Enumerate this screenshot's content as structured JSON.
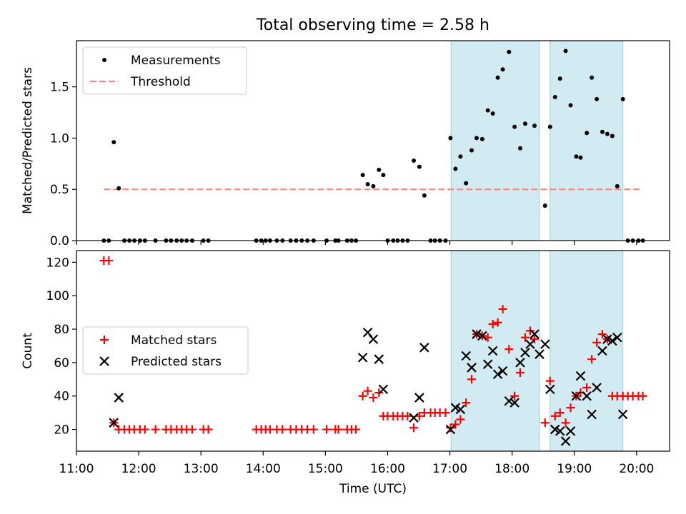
{
  "figure": {
    "title": "Total observing time = 2.58 h"
  },
  "chart_data": [
    {
      "type": "scatter",
      "ylabel": "Matched/Predicted stars",
      "xlim": [
        11.0,
        20.53
      ],
      "ylim": [
        0,
        1.95
      ],
      "yticks": [
        0.0,
        0.5,
        1.0,
        1.5
      ],
      "ytick_labels": [
        "0.0",
        "0.5",
        "1.0",
        "1.5"
      ],
      "grid": false,
      "legend": {
        "position": "upper-left",
        "entries": [
          "Measurements",
          "Threshold"
        ]
      },
      "shaded_intervals": [
        [
          17.02,
          18.44
        ],
        [
          18.61,
          19.78
        ]
      ],
      "threshold": {
        "name": "Threshold",
        "y": 0.5,
        "x_start": 11.44,
        "x_end": 20.1,
        "color": "#ff8080"
      },
      "series": [
        {
          "name": "Measurements",
          "color": "#000000",
          "x": [
            11.44,
            11.52,
            11.6,
            11.68,
            11.77,
            11.85,
            11.93,
            12.02,
            12.1,
            12.27,
            12.44,
            12.52,
            12.61,
            12.69,
            12.77,
            12.86,
            13.04,
            13.12,
            13.89,
            13.97,
            14.04,
            14.11,
            14.22,
            14.31,
            14.44,
            14.53,
            14.62,
            14.71,
            14.81,
            15.02,
            15.16,
            15.21,
            15.35,
            15.42,
            15.49,
            15.6,
            15.68,
            15.77,
            15.86,
            15.93,
            16.0,
            16.09,
            16.16,
            16.24,
            16.32,
            16.42,
            16.51,
            16.59,
            16.69,
            16.76,
            16.84,
            16.93,
            17.01,
            17.09,
            17.17,
            17.26,
            17.35,
            17.43,
            17.52,
            17.61,
            17.69,
            17.77,
            17.85,
            17.95,
            18.04,
            18.13,
            18.21,
            18.36,
            18.53,
            18.61,
            18.69,
            18.77,
            18.86,
            18.94,
            19.03,
            19.1,
            19.2,
            19.28,
            19.36,
            19.45,
            19.53,
            19.61,
            19.69,
            19.78,
            19.86,
            19.94,
            20.03,
            20.1
          ],
          "y": [
            0,
            0,
            0.96,
            0.51,
            0,
            0,
            0,
            0,
            0,
            0,
            0,
            0,
            0,
            0,
            0,
            0,
            0,
            0,
            0,
            0,
            0,
            0,
            0,
            0,
            0,
            0,
            0,
            0,
            0,
            0,
            0,
            0,
            0,
            0,
            0,
            0.64,
            0.55,
            0.53,
            0.69,
            0.64,
            0,
            0,
            0,
            0,
            0,
            0.78,
            0.72,
            0.44,
            0,
            0,
            0,
            0,
            1.0,
            0.7,
            0.82,
            0.56,
            0.88,
            1.0,
            0.99,
            1.27,
            1.24,
            1.59,
            1.67,
            1.84,
            1.11,
            0.9,
            1.14,
            1.12,
            0.34,
            1.11,
            1.4,
            1.58,
            1.85,
            1.32,
            0.82,
            0.81,
            1.05,
            1.59,
            1.38,
            1.06,
            1.04,
            1.02,
            0.53,
            1.38,
            0,
            0,
            0,
            0
          ]
        }
      ]
    },
    {
      "type": "scatter",
      "xlabel": "Time (UTC)",
      "ylabel": "Count",
      "xlim": [
        11.0,
        20.53
      ],
      "ylim": [
        7,
        127
      ],
      "xticks": [
        11,
        12,
        13,
        14,
        15,
        16,
        17,
        18,
        19,
        20
      ],
      "xtick_labels": [
        "11:00",
        "12:00",
        "13:00",
        "14:00",
        "15:00",
        "16:00",
        "17:00",
        "18:00",
        "19:00",
        "20:00"
      ],
      "yticks": [
        20,
        40,
        60,
        80,
        100,
        120
      ],
      "ytick_labels": [
        "20",
        "40",
        "60",
        "80",
        "100",
        "120"
      ],
      "grid": false,
      "legend": {
        "position": "center-left",
        "entries": [
          "Matched stars",
          "Predicted stars"
        ]
      },
      "shaded_intervals": [
        [
          17.02,
          18.44
        ],
        [
          18.61,
          19.78
        ]
      ],
      "series": [
        {
          "name": "Matched stars",
          "marker": "plus",
          "color": "#ff0000",
          "x": [
            11.44,
            11.52,
            11.6,
            11.68,
            11.77,
            11.85,
            11.93,
            12.02,
            12.1,
            12.27,
            12.44,
            12.52,
            12.61,
            12.69,
            12.77,
            12.86,
            13.04,
            13.12,
            13.89,
            13.97,
            14.04,
            14.11,
            14.22,
            14.31,
            14.44,
            14.53,
            14.62,
            14.71,
            14.81,
            15.02,
            15.16,
            15.21,
            15.35,
            15.42,
            15.49,
            15.6,
            15.68,
            15.77,
            15.86,
            15.93,
            16.0,
            16.09,
            16.16,
            16.24,
            16.32,
            16.42,
            16.51,
            16.59,
            16.69,
            16.76,
            16.84,
            16.93,
            17.01,
            17.09,
            17.17,
            17.26,
            17.35,
            17.43,
            17.52,
            17.61,
            17.69,
            17.77,
            17.85,
            17.95,
            18.04,
            18.13,
            18.21,
            18.29,
            18.36,
            18.53,
            18.61,
            18.69,
            18.77,
            18.86,
            18.94,
            19.03,
            19.1,
            19.2,
            19.28,
            19.36,
            19.45,
            19.53,
            19.61,
            19.69,
            19.78,
            19.86,
            19.94,
            20.03,
            20.1
          ],
          "y": [
            121,
            121,
            24,
            20,
            20,
            20,
            20,
            20,
            20,
            20,
            20,
            20,
            20,
            20,
            20,
            20,
            20,
            20,
            20,
            20,
            20,
            20,
            20,
            20,
            20,
            20,
            20,
            20,
            20,
            20,
            20,
            20,
            20,
            20,
            20,
            40,
            43,
            39,
            42,
            28,
            28,
            28,
            28,
            28,
            28,
            21,
            28,
            30,
            30,
            30,
            30,
            30,
            21,
            23,
            26,
            36,
            50,
            77,
            76,
            75,
            83,
            84,
            92,
            68,
            40,
            54,
            75,
            79,
            74,
            24,
            49,
            28,
            30,
            24,
            33,
            40,
            42,
            45,
            62,
            72,
            77,
            74,
            40,
            40,
            40,
            40,
            40,
            40,
            40
          ]
        },
        {
          "name": "Predicted stars",
          "marker": "x",
          "color": "#000000",
          "x": [
            11.6,
            11.68,
            15.6,
            15.68,
            15.77,
            15.86,
            15.93,
            16.42,
            16.51,
            16.59,
            17.01,
            17.09,
            17.17,
            17.26,
            17.35,
            17.43,
            17.52,
            17.61,
            17.69,
            17.77,
            17.85,
            17.95,
            18.04,
            18.13,
            18.21,
            18.29,
            18.36,
            18.44,
            18.53,
            18.61,
            18.69,
            18.77,
            18.86,
            18.94,
            19.03,
            19.1,
            19.2,
            19.28,
            19.36,
            19.45,
            19.53,
            19.61,
            19.69,
            19.78
          ],
          "y": [
            24,
            39,
            63,
            78,
            74,
            62,
            44,
            27,
            39,
            69,
            20,
            33,
            32,
            64,
            57,
            77,
            76,
            59,
            67,
            53,
            55,
            37,
            36,
            60,
            66,
            71,
            77,
            65,
            71,
            44,
            20,
            19,
            13,
            19,
            40,
            52,
            40,
            29,
            45,
            67,
            74,
            73,
            75,
            29
          ]
        }
      ]
    }
  ]
}
